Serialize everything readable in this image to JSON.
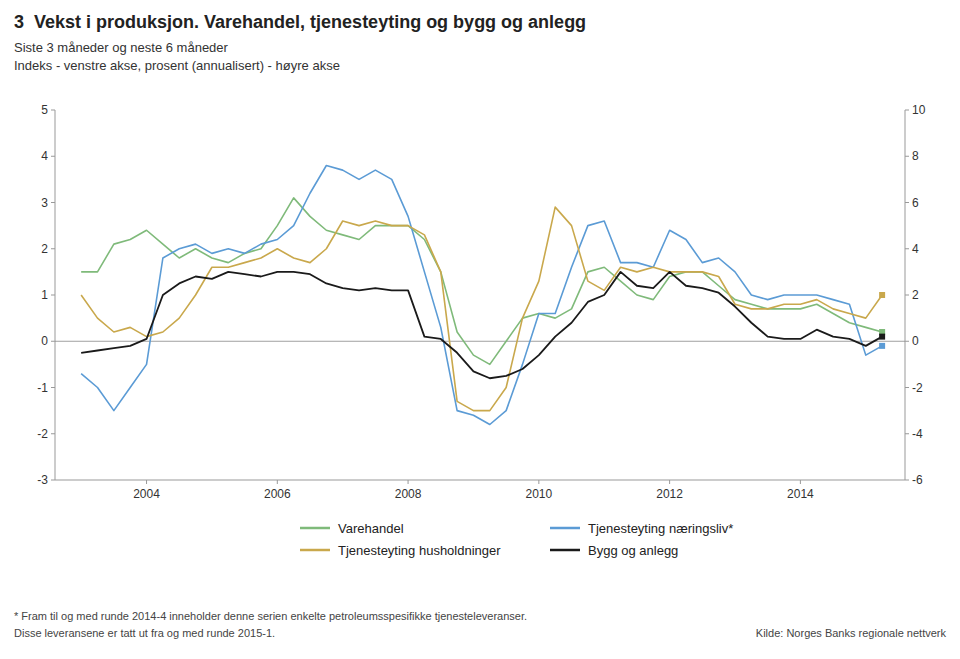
{
  "chart_data": {
    "type": "line",
    "title": "3  Vekst i produksjon. Varehandel, tjenesteyting og bygg og anlegg",
    "subtitle": [
      "Siste 3 måneder og neste 6 måneder",
      "Indeks - venstre akse, prosent (annualisert) - høyre akse"
    ],
    "notes": [
      "* Fram til og med runde 2014-4 inneholder denne serien enkelte petroleumsspesifikke tjenesteleveranser.",
      "Disse leveransene er tatt ut fra og med runde 2015-1."
    ],
    "source": "Kilde: Norges Banks regionale nettverk",
    "x": [
      2003.0,
      2003.25,
      2003.5,
      2003.75,
      2004.0,
      2004.25,
      2004.5,
      2004.75,
      2005.0,
      2005.25,
      2005.5,
      2005.75,
      2006.0,
      2006.25,
      2006.5,
      2006.75,
      2007.0,
      2007.25,
      2007.5,
      2007.75,
      2008.0,
      2008.25,
      2008.5,
      2008.75,
      2009.0,
      2009.25,
      2009.5,
      2009.75,
      2010.0,
      2010.25,
      2010.5,
      2010.75,
      2011.0,
      2011.25,
      2011.5,
      2011.75,
      2012.0,
      2012.25,
      2012.5,
      2012.75,
      2013.0,
      2013.25,
      2013.5,
      2013.75,
      2014.0,
      2014.25,
      2014.5,
      2014.75,
      2015.0,
      2015.25
    ],
    "series": [
      {
        "name": "Varehandel",
        "color": "#7fba7a",
        "values": [
          1.5,
          1.5,
          2.1,
          2.2,
          2.4,
          2.1,
          1.8,
          2.0,
          1.8,
          1.7,
          1.9,
          2.0,
          2.5,
          3.1,
          2.7,
          2.4,
          2.3,
          2.2,
          2.5,
          2.5,
          2.5,
          2.2,
          1.5,
          0.2,
          -0.3,
          -0.5,
          0.0,
          0.5,
          0.6,
          0.5,
          0.7,
          1.5,
          1.6,
          1.3,
          1.0,
          0.9,
          1.4,
          1.5,
          1.5,
          1.2,
          0.9,
          0.8,
          0.7,
          0.7,
          0.7,
          0.8,
          0.6,
          0.4,
          0.3,
          0.2
        ]
      },
      {
        "name": "Tjenesteyting næringsliv*",
        "color": "#5b9bd5",
        "values": [
          -0.7,
          -1.0,
          -1.5,
          -1.0,
          -0.5,
          1.8,
          2.0,
          2.1,
          1.9,
          2.0,
          1.9,
          2.1,
          2.2,
          2.5,
          3.2,
          3.8,
          3.7,
          3.5,
          3.7,
          3.5,
          2.7,
          1.5,
          0.3,
          -1.5,
          -1.6,
          -1.8,
          -1.5,
          -0.5,
          0.6,
          0.6,
          1.6,
          2.5,
          2.6,
          1.7,
          1.7,
          1.6,
          2.4,
          2.2,
          1.7,
          1.8,
          1.5,
          1.0,
          0.9,
          1.0,
          1.0,
          1.0,
          0.9,
          0.8,
          -0.3,
          -0.1
        ]
      },
      {
        "name": "Tjenesteyting husholdninger",
        "color": "#c9a84c",
        "values": [
          1.0,
          0.5,
          0.2,
          0.3,
          0.1,
          0.2,
          0.5,
          1.0,
          1.6,
          1.6,
          1.7,
          1.8,
          2.0,
          1.8,
          1.7,
          2.0,
          2.6,
          2.5,
          2.6,
          2.5,
          2.5,
          2.3,
          1.5,
          -1.3,
          -1.5,
          -1.5,
          -1.0,
          0.5,
          1.3,
          2.9,
          2.5,
          1.3,
          1.1,
          1.6,
          1.5,
          1.6,
          1.5,
          1.5,
          1.5,
          1.4,
          0.8,
          0.7,
          0.7,
          0.8,
          0.8,
          0.9,
          0.7,
          0.6,
          0.5,
          1.0
        ]
      },
      {
        "name": "Bygg og anlegg",
        "color": "#1a1a1a",
        "axis": "y2",
        "values": [
          -0.5,
          -0.4,
          -0.3,
          -0.2,
          0.1,
          2.0,
          2.5,
          2.8,
          2.7,
          3.0,
          2.9,
          2.8,
          3.0,
          3.0,
          2.9,
          2.5,
          2.3,
          2.2,
          2.3,
          2.2,
          2.2,
          0.2,
          0.1,
          -0.5,
          -1.3,
          -1.6,
          -1.5,
          -1.2,
          -0.6,
          0.2,
          0.8,
          1.7,
          2.0,
          3.0,
          2.4,
          2.3,
          3.0,
          2.4,
          2.3,
          2.1,
          1.5,
          0.8,
          0.2,
          0.1,
          0.1,
          0.5,
          0.2,
          0.1,
          -0.2,
          0.2
        ]
      }
    ],
    "xlim": [
      2002.6,
      2015.6
    ],
    "xticks": [
      2004,
      2006,
      2008,
      2010,
      2012,
      2014
    ],
    "ylim": [
      -3,
      5
    ],
    "yticks": [
      -3,
      -2,
      -1,
      0,
      1,
      2,
      3,
      4,
      5
    ],
    "y2lim": [
      -6,
      10
    ],
    "y2ticks": [
      -6,
      -4,
      -2,
      0,
      2,
      4,
      6,
      8,
      10
    ],
    "grid": false,
    "legend": "bottom"
  }
}
